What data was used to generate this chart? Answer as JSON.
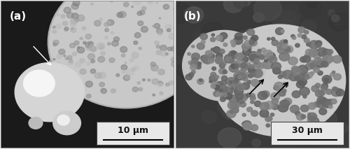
{
  "figsize": [
    5.0,
    2.13
  ],
  "dpi": 100,
  "label_a": "(a)",
  "label_b": "(b)",
  "scalebar_a": "10 μm",
  "scalebar_b": "30 μm",
  "bg_color": "#f0f0f0",
  "border_color": "#888888",
  "panel_a_bg": "#1a1a1a",
  "panel_b_bg": "#5a5a5a",
  "label_fontsize": 11,
  "scalebar_fontsize": 9,
  "scalebar_box_color": "#e8e8e8",
  "scalebar_text_color": "#111111"
}
